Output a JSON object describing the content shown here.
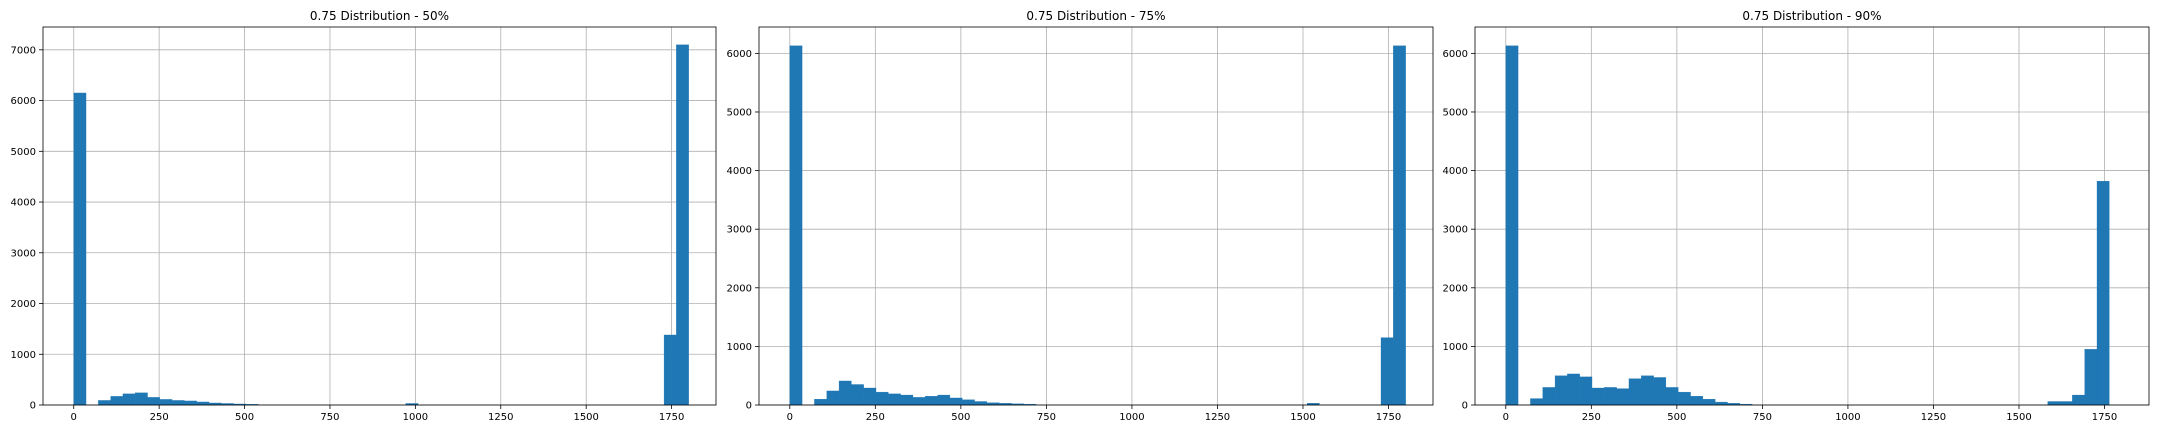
{
  "chart_data": [
    {
      "type": "bar",
      "title": "0.75 Distribution - 50%",
      "xlabel": "",
      "ylabel": "",
      "xlim": [
        -90,
        1880
      ],
      "ylim": [
        0,
        7450
      ],
      "xticks": [
        0,
        250,
        500,
        750,
        1000,
        1250,
        1500,
        1750
      ],
      "yticks": [
        0,
        1000,
        2000,
        3000,
        4000,
        5000,
        6000,
        7000
      ],
      "grid": true,
      "color": "#1f77b4",
      "bin_width": 36,
      "bin_starts": [
        0,
        72,
        108,
        144,
        180,
        216,
        252,
        288,
        324,
        360,
        396,
        432,
        468,
        504,
        972,
        1728,
        1764
      ],
      "values": [
        6150,
        90,
        170,
        220,
        240,
        150,
        110,
        90,
        80,
        60,
        40,
        30,
        20,
        15,
        30,
        1380,
        7100
      ]
    },
    {
      "type": "bar",
      "title": "0.75 Distribution - 75%",
      "xlabel": "",
      "ylabel": "",
      "xlim": [
        -90,
        1880
      ],
      "ylim": [
        0,
        6450
      ],
      "xticks": [
        0,
        250,
        500,
        750,
        1000,
        1250,
        1500,
        1750
      ],
      "yticks": [
        0,
        1000,
        2000,
        3000,
        4000,
        5000,
        6000
      ],
      "grid": true,
      "color": "#1f77b4",
      "bin_width": 36,
      "bin_starts": [
        0,
        72,
        108,
        144,
        180,
        216,
        252,
        288,
        324,
        360,
        396,
        432,
        468,
        504,
        540,
        576,
        612,
        648,
        684,
        1512,
        1728,
        1764
      ],
      "values": [
        6130,
        100,
        240,
        410,
        350,
        290,
        220,
        190,
        170,
        130,
        150,
        170,
        120,
        90,
        60,
        40,
        30,
        20,
        15,
        30,
        1150,
        6130
      ]
    },
    {
      "type": "bar",
      "title": "0.75 Distribution - 90%",
      "xlabel": "",
      "ylabel": "",
      "xlim": [
        -90,
        1880
      ],
      "ylim": [
        0,
        6450
      ],
      "xticks": [
        0,
        250,
        500,
        750,
        1000,
        1250,
        1500,
        1750
      ],
      "yticks": [
        0,
        1000,
        2000,
        3000,
        4000,
        5000,
        6000
      ],
      "grid": true,
      "color": "#1f77b4",
      "bin_width": 36,
      "bin_starts": [
        0,
        72,
        108,
        144,
        180,
        216,
        252,
        288,
        324,
        360,
        396,
        432,
        468,
        504,
        540,
        576,
        612,
        648,
        684,
        1584,
        1620,
        1656,
        1692,
        1728,
        1764
      ],
      "values": [
        6130,
        110,
        300,
        500,
        530,
        480,
        290,
        300,
        280,
        450,
        500,
        470,
        300,
        220,
        150,
        100,
        50,
        30,
        15,
        60,
        60,
        170,
        950,
        3820,
        0
      ]
    }
  ]
}
